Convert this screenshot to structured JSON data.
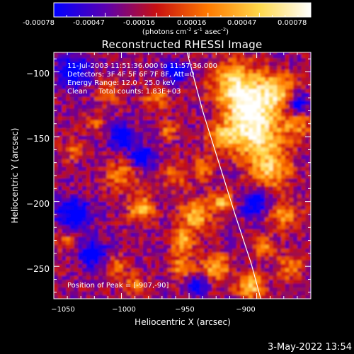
{
  "colorbar": {
    "tick_labels": [
      "-0.00078",
      "-0.00047",
      "-0.00016",
      "0.00016",
      "0.00047",
      "0.00078"
    ],
    "units_html": "(photons cm<tspan baseline-shift=\"super\" font-size=\"7\">-2</tspan> s<tspan baseline-shift=\"super\" font-size=\"7\">-1</tspan> asec<tspan baseline-shift=\"super\" font-size=\"7\">-2</tspan>)",
    "units_text": "(photons cm-2 s-1 asec-2)",
    "range": [
      -0.00078,
      0.00078
    ],
    "colors": [
      "#0000ff",
      "#5a00b0",
      "#c81010",
      "#ff7a00",
      "#ffd84a",
      "#ffffff"
    ]
  },
  "chart_data": {
    "type": "heatmap",
    "title": "Reconstructed RHESSI Image",
    "xlabel": "Heliocentric X (arcsec)",
    "ylabel": "Heliocentric Y (arcsec)",
    "x_ticks": [
      "−1050",
      "−1000",
      "−950",
      "−900"
    ],
    "x_tick_values": [
      -1050,
      -1000,
      -950,
      -900
    ],
    "y_ticks": [
      "−100",
      "−150",
      "−200",
      "−250"
    ],
    "y_tick_values": [
      -100,
      -150,
      -200,
      -250
    ],
    "xlim": [
      -1050,
      -860
    ],
    "ylim": [
      -275,
      -85
    ],
    "limb_curve": [
      [
        -951.5,
        -85
      ],
      [
        -940,
        -130
      ],
      [
        -928,
        -170
      ],
      [
        -916,
        -210
      ],
      [
        -904,
        -248
      ],
      [
        -897,
        -275
      ]
    ],
    "annotations": [
      "11-Jul-2003 11:51:36.000 to 11:57:36.000",
      "Detectors: 3F 4F 5F 6F 7F 8F, Att=0",
      "Energy Range: 12.0 - 25.0 keV",
      "Clean     Total counts: 1.83E+03",
      "Position of Peak = [-907,-90]"
    ],
    "peak_position": [
      -907,
      -90
    ],
    "total_counts": "1.83E+03",
    "energy_range_kev": [
      12.0,
      25.0
    ]
  },
  "footer": {
    "datestamp": "3-May-2022 13:54"
  }
}
